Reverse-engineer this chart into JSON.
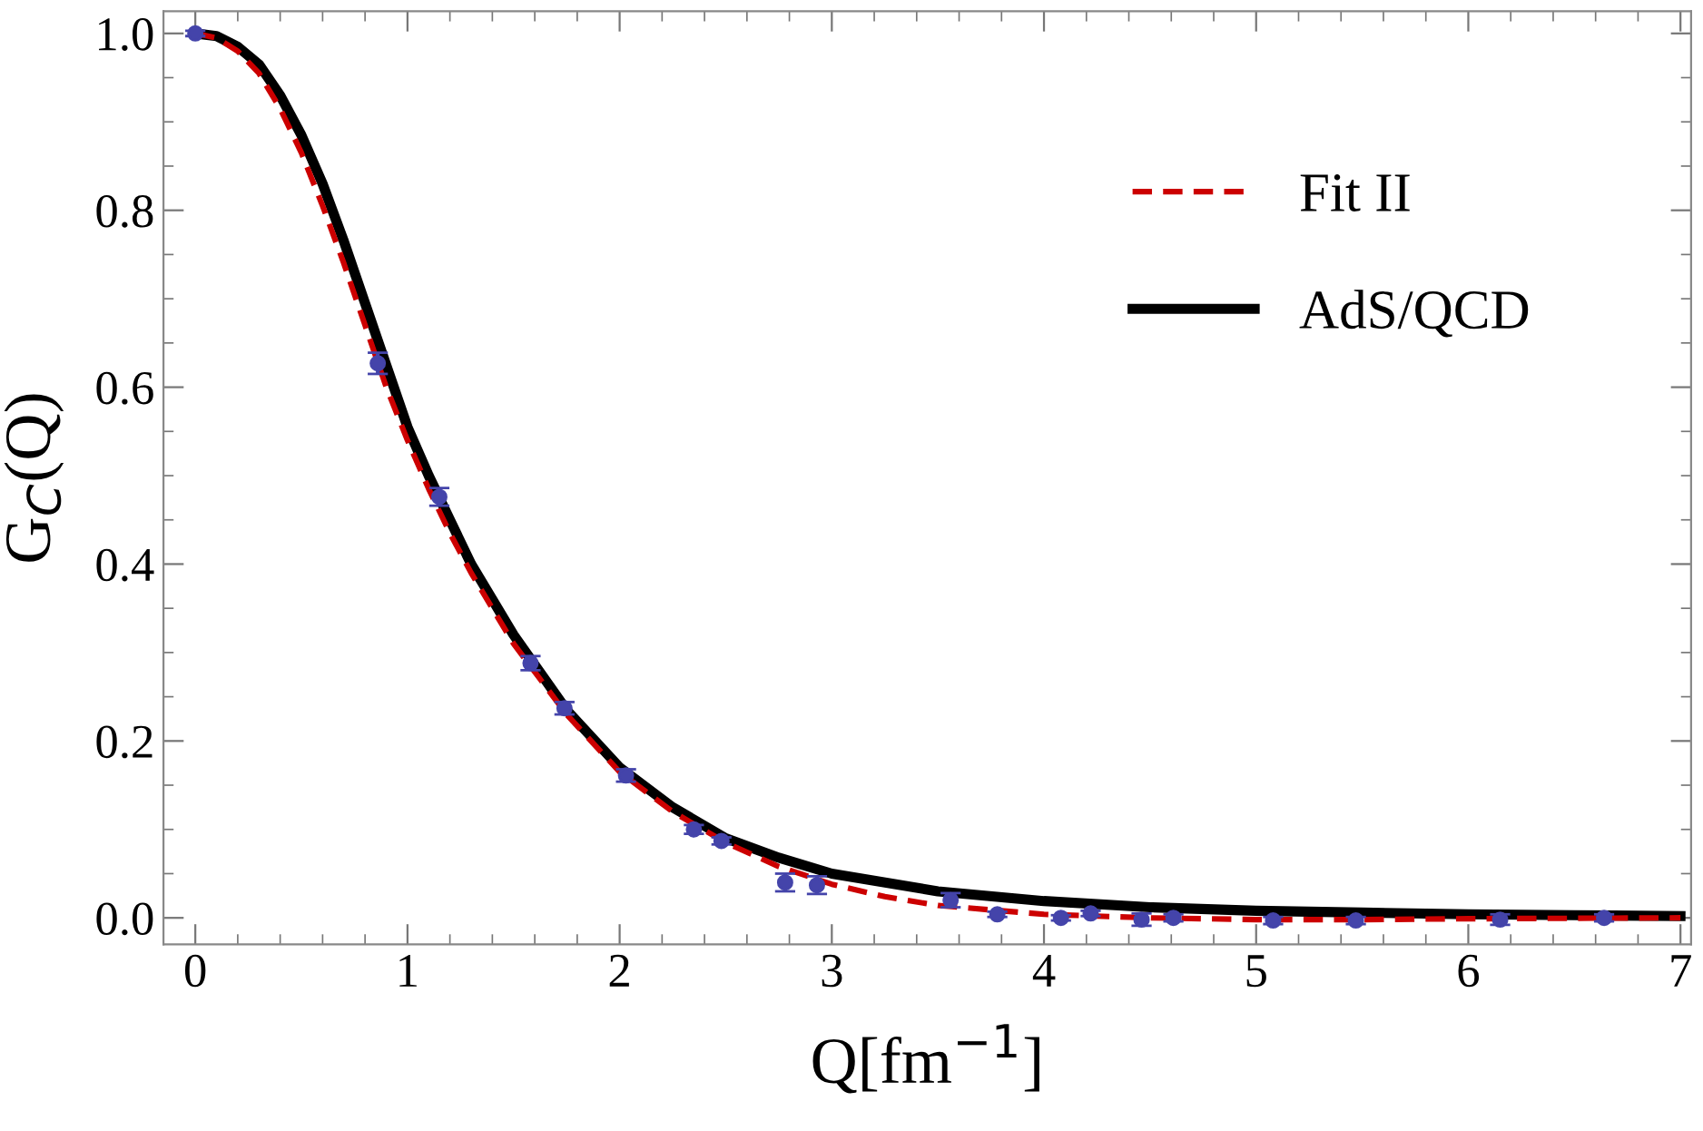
{
  "chart_data": {
    "type": "line",
    "xlabel": "Q[fm$^{−1}$]",
    "ylabel": "G$_{C}$(Q)",
    "xlim": [
      -0.15,
      7.05
    ],
    "ylim": [
      -0.03,
      1.025
    ],
    "xticks": [
      0,
      1,
      2,
      3,
      4,
      5,
      6,
      7
    ],
    "yticks": [
      {
        "value": 0,
        "label": "0.0"
      },
      {
        "value": 0.2,
        "label": "0.2"
      },
      {
        "value": 0.4,
        "label": "0.4"
      },
      {
        "value": 0.6,
        "label": "0.6"
      },
      {
        "value": 0.8,
        "label": "0.8"
      },
      {
        "value": 1.0,
        "label": "1.0"
      }
    ],
    "grid": false,
    "legend": "top right",
    "series": [
      {
        "name": "Fit II",
        "color": "#cc0000",
        "line_style": "dashed",
        "marker": "none",
        "x": [
          0,
          0.1,
          0.2,
          0.3,
          0.4,
          0.5,
          0.6,
          0.7,
          0.8,
          0.9,
          1,
          1.1,
          1.2,
          1.3,
          1.4,
          1.5,
          1.75,
          2,
          2.25,
          2.5,
          2.75,
          3,
          3.25,
          3.5,
          4,
          4.5,
          5,
          5.5,
          6,
          7
        ],
        "values": [
          1,
          0.995,
          0.98,
          0.955,
          0.915,
          0.865,
          0.805,
          0.74,
          0.67,
          0.6,
          0.54,
          0.485,
          0.435,
          0.39,
          0.35,
          0.31,
          0.23,
          0.165,
          0.12,
          0.085,
          0.058,
          0.038,
          0.024,
          0.014,
          0.004,
          0,
          -0.002,
          -0.002,
          -0.001,
          0
        ]
      },
      {
        "name": "AdS/QCD",
        "color": "#000000",
        "line_style": "solid",
        "marker": "none",
        "x": [
          0,
          0.1,
          0.2,
          0.3,
          0.4,
          0.5,
          0.6,
          0.7,
          0.8,
          0.9,
          1,
          1.1,
          1.2,
          1.3,
          1.4,
          1.5,
          1.75,
          2,
          2.25,
          2.5,
          2.75,
          3,
          3.5,
          4,
          4.5,
          5,
          5.5,
          6,
          6.5,
          7
        ],
        "values": [
          1,
          0.997,
          0.985,
          0.965,
          0.93,
          0.885,
          0.83,
          0.765,
          0.695,
          0.625,
          0.555,
          0.5,
          0.45,
          0.4,
          0.36,
          0.32,
          0.235,
          0.17,
          0.125,
          0.09,
          0.068,
          0.05,
          0.03,
          0.019,
          0.012,
          0.008,
          0.006,
          0.004,
          0.003,
          0.002
        ]
      },
      {
        "type": "scatter",
        "color": "#4444aa",
        "marker": "circle",
        "x": [
          0,
          0.86,
          1.15,
          1.58,
          1.74,
          2.03,
          2.35,
          2.48,
          2.78,
          2.93,
          3.56,
          3.78,
          4.08,
          4.22,
          4.46,
          4.61,
          5.08,
          5.47,
          6.15,
          6.64
        ],
        "values": [
          1,
          0.627,
          0.476,
          0.288,
          0.237,
          0.161,
          0.1,
          0.087,
          0.04,
          0.037,
          0.02,
          0.004,
          0,
          0.005,
          -0.002,
          0,
          -0.003,
          -0.003,
          -0.002,
          0
        ],
        "errors": [
          0.003,
          0.012,
          0.01,
          0.008,
          0.007,
          0.007,
          0.005,
          0.004,
          0.01,
          0.01,
          0.008,
          0.003,
          0.003,
          0.003,
          0.007,
          0.004,
          0.004,
          0.004,
          0.006,
          0.004
        ]
      }
    ]
  }
}
